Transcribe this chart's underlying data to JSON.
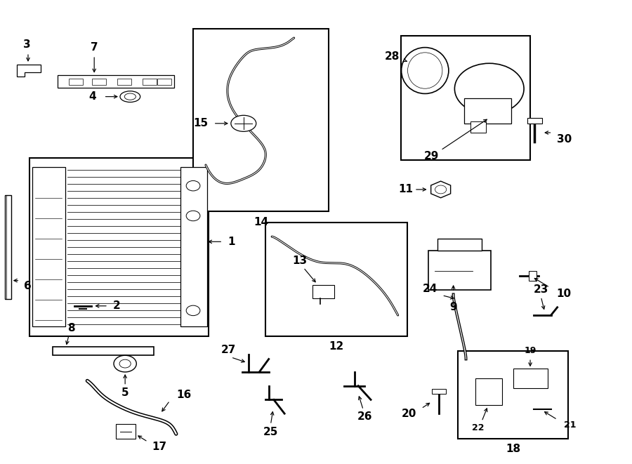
{
  "bg_color": "#ffffff",
  "lc": "#000000",
  "fig_w": 9.0,
  "fig_h": 6.61,
  "dpi": 100
}
